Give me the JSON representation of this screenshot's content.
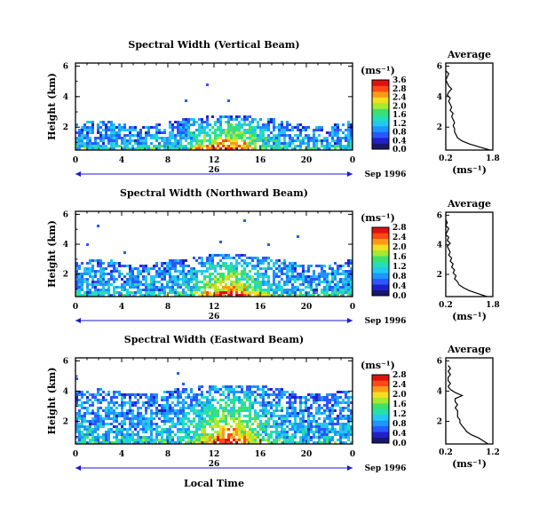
{
  "common": {
    "ylabel": "Height (km)",
    "units": "(ms⁻¹)",
    "date_label": "Sep 1996",
    "xlabel": "Local Time",
    "day_label": "26",
    "avg_title": "Average"
  },
  "chart_data": [
    {
      "type": "heatmap",
      "title": "Spectral Width (Vertical Beam)",
      "xlabel": "",
      "ylabel": "Height (km)",
      "x_ticks": [
        "0",
        "4",
        "8",
        "12",
        "16",
        "20",
        "0"
      ],
      "y_ticks": [
        "2",
        "4",
        "6"
      ],
      "xlim": [
        0,
        24
      ],
      "ylim": [
        0.5,
        6.2
      ],
      "colorbar": {
        "label": "(ms⁻¹)",
        "ticks": [
          "0.0",
          "0.4",
          "0.8",
          "1.2",
          "1.6",
          "2.0",
          "2.4",
          "2.8",
          "3.6"
        ],
        "range": [
          0,
          3.6
        ]
      },
      "profile": {
        "title": "Average",
        "xlabel": "(ms⁻¹)",
        "x_ticks": [
          "0.2",
          "1.8"
        ],
        "xlim": [
          0.2,
          1.8
        ],
        "y_ticks": [
          "2",
          "4",
          "6"
        ],
        "ylim": [
          0.5,
          6.2
        ],
        "height": [
          0.5,
          0.7,
          0.9,
          1.1,
          1.3,
          1.5,
          1.7,
          1.9,
          2.1,
          2.3,
          2.5,
          2.7,
          2.9,
          3.1,
          3.3,
          3.5,
          3.7,
          3.9,
          4.1,
          4.3,
          4.5,
          4.7,
          4.9,
          5.1,
          5.3,
          5.5,
          5.7
        ],
        "width": [
          1.7,
          1.35,
          1.0,
          0.75,
          0.6,
          0.55,
          0.5,
          0.5,
          0.45,
          0.5,
          0.45,
          0.4,
          0.45,
          0.35,
          0.4,
          0.35,
          0.3,
          0.35,
          0.25,
          0.3,
          0.4,
          0.3,
          0.25,
          0.2,
          0.25,
          0.3,
          0.2
        ]
      }
    },
    {
      "type": "heatmap",
      "title": "Spectral Width (Northward Beam)",
      "xlabel": "",
      "ylabel": "Height (km)",
      "x_ticks": [
        "0",
        "4",
        "8",
        "12",
        "16",
        "20",
        "0"
      ],
      "y_ticks": [
        "2",
        "4",
        "6"
      ],
      "xlim": [
        0,
        24
      ],
      "ylim": [
        0.5,
        6.2
      ],
      "colorbar": {
        "label": "(ms⁻¹)",
        "ticks": [
          "0.0",
          "0.4",
          "0.8",
          "1.2",
          "1.6",
          "2.0",
          "2.4",
          "2.8"
        ],
        "range": [
          0,
          2.8
        ]
      },
      "profile": {
        "title": "Average",
        "xlabel": "(ms⁻¹)",
        "x_ticks": [
          "0.2",
          "1.8"
        ],
        "xlim": [
          0.2,
          1.8
        ],
        "y_ticks": [
          "2",
          "4",
          "6"
        ],
        "ylim": [
          0.5,
          6.2
        ],
        "height": [
          0.5,
          0.7,
          0.9,
          1.1,
          1.3,
          1.5,
          1.7,
          1.9,
          2.1,
          2.3,
          2.5,
          2.7,
          2.9,
          3.1,
          3.3,
          3.5,
          3.7,
          3.9,
          4.1,
          4.3,
          4.5,
          4.7,
          4.9,
          5.1,
          5.3,
          5.5,
          5.7
        ],
        "width": [
          1.6,
          1.3,
          1.0,
          0.8,
          0.65,
          0.6,
          0.5,
          0.55,
          0.45,
          0.5,
          0.4,
          0.45,
          0.35,
          0.4,
          0.3,
          0.35,
          0.3,
          0.25,
          0.35,
          0.25,
          0.3,
          0.2,
          0.25,
          0.3,
          0.2,
          0.25,
          0.2
        ]
      }
    },
    {
      "type": "heatmap",
      "title": "Spectral Width (Eastward Beam)",
      "xlabel": "Local Time",
      "ylabel": "Height (km)",
      "x_ticks": [
        "0",
        "4",
        "8",
        "12",
        "16",
        "20",
        "0"
      ],
      "y_ticks": [
        "2",
        "4",
        "6"
      ],
      "xlim": [
        0,
        24
      ],
      "ylim": [
        0.5,
        6.2
      ],
      "colorbar": {
        "label": "(ms⁻¹)",
        "ticks": [
          "0.0",
          "0.4",
          "0.8",
          "1.2",
          "1.6",
          "2.0",
          "2.4",
          "2.8"
        ],
        "range": [
          0,
          2.8
        ]
      },
      "profile": {
        "title": "Average",
        "xlabel": "(ms⁻¹)",
        "x_ticks": [
          "0.2",
          "1.2"
        ],
        "xlim": [
          0.2,
          1.2
        ],
        "y_ticks": [
          "2",
          "4",
          "6"
        ],
        "ylim": [
          0.5,
          6.2
        ],
        "height": [
          0.5,
          0.7,
          0.9,
          1.1,
          1.3,
          1.5,
          1.7,
          1.9,
          2.1,
          2.3,
          2.5,
          2.7,
          2.9,
          3.1,
          3.3,
          3.5,
          3.7,
          3.9,
          4.1,
          4.3,
          4.5,
          4.7,
          4.9,
          5.1,
          5.3,
          5.5,
          5.7
        ],
        "width": [
          1.1,
          1.0,
          0.9,
          0.75,
          0.65,
          0.6,
          0.55,
          0.5,
          0.5,
          0.45,
          0.45,
          0.45,
          0.4,
          0.45,
          0.4,
          0.4,
          0.55,
          0.4,
          0.3,
          0.25,
          0.3,
          0.25,
          0.25,
          0.3,
          0.25,
          0.3,
          0.25
        ]
      }
    }
  ]
}
